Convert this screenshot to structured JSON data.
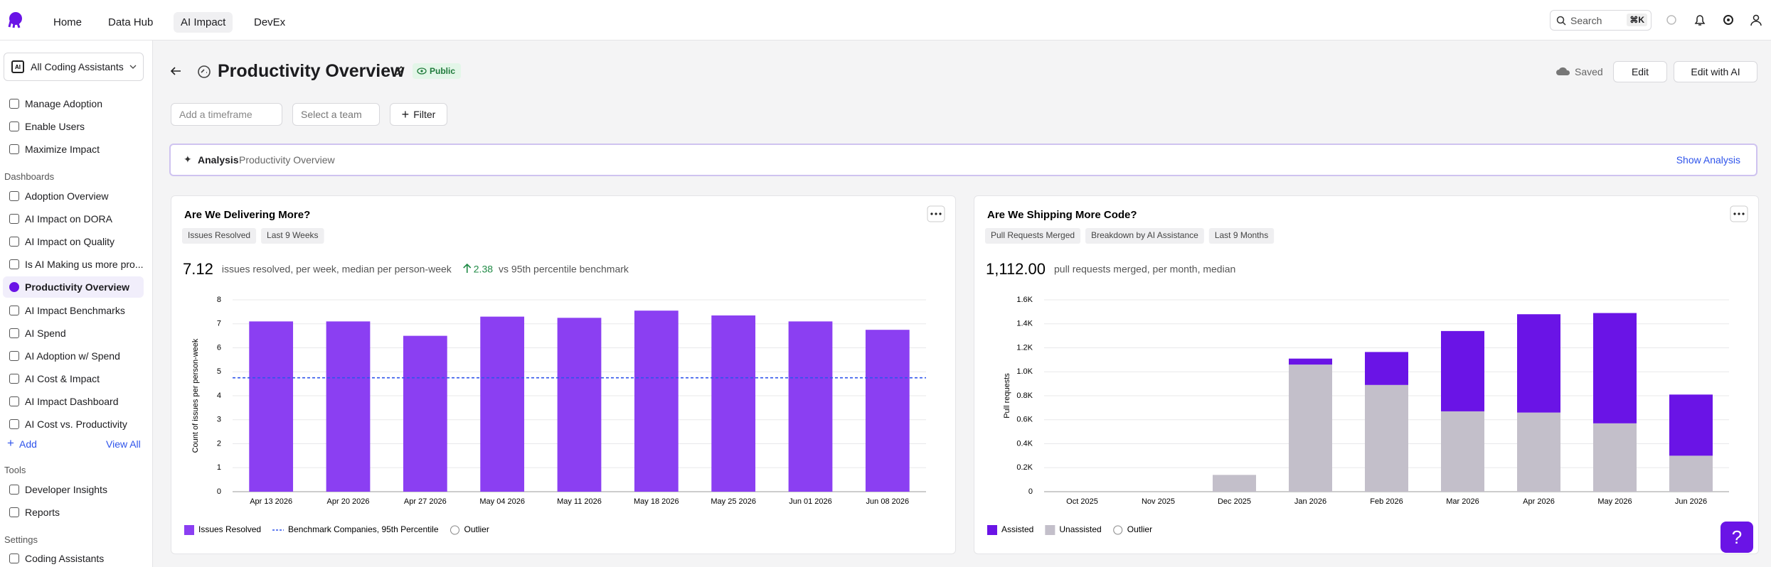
{
  "nav": {
    "items": [
      "Home",
      "Data Hub",
      "AI Impact",
      "DevEx"
    ],
    "search": "Search",
    "shortcut": "⌘K"
  },
  "sidebar": {
    "selector": "All Coding Assistants",
    "top_items": [
      "Manage Adoption",
      "Enable Users",
      "Maximize Impact"
    ],
    "dashboards_heading": "Dashboards",
    "dashboards": [
      "Adoption Overview",
      "AI Impact on DORA",
      "AI Impact on Quality",
      "Is AI Making us more pro...",
      "Productivity Overview",
      "AI Impact Benchmarks",
      "AI Spend",
      "AI Adoption w/ Spend",
      "AI Cost & Impact",
      "AI Impact Dashboard",
      "AI Cost vs. Productivity"
    ],
    "add": "Add",
    "view_all": "View All",
    "tools_heading": "Tools",
    "tools": [
      "Developer Insights",
      "Reports"
    ],
    "settings_heading": "Settings",
    "settings": [
      "Coding Assistants"
    ]
  },
  "header": {
    "title": "Productivity Overview",
    "badge": "Public",
    "saved": "Saved",
    "edit": "Edit",
    "edit_ai": "Edit with AI"
  },
  "filters": {
    "timeframe": "Add a timeframe",
    "team": "Select a team",
    "filter": "Filter"
  },
  "analysis": {
    "label": "Analysis",
    "name": "Productivity Overview",
    "action": "Show Analysis"
  },
  "help": "?",
  "chart_data": [
    {
      "type": "bar",
      "title": "Are We Delivering More?",
      "tags": [
        "Issues Resolved",
        "Last 9 Weeks"
      ],
      "stat": "7.12",
      "stat_text": "issues resolved, per week, median per person-week",
      "delta": "2.38",
      "delta_text": "vs 95th percentile benchmark",
      "y_label": "Count of issues per person-week",
      "categories": [
        "Apr 13 2026",
        "Apr 20 2026",
        "Apr 27 2026",
        "May 04 2026",
        "May 11 2026",
        "May 18 2026",
        "May 25 2026",
        "Jun 01 2026",
        "Jun 08 2026"
      ],
      "series": [
        {
          "name": "Issues Resolved",
          "color": "#8b3ff2",
          "values": [
            7.1,
            7.1,
            6.5,
            7.3,
            7.25,
            7.55,
            7.35,
            7.1,
            6.75
          ]
        }
      ],
      "benchmark": {
        "name": "Benchmark Companies, 95th Percentile",
        "value": 4.75,
        "color": "#2f54eb"
      },
      "outlier_label": "Outlier",
      "ylim": [
        0,
        8
      ],
      "yticks": [
        0,
        1,
        2,
        3,
        4,
        5,
        6,
        7,
        8
      ],
      "grid": true
    },
    {
      "type": "bar",
      "stacked": true,
      "title": "Are We Shipping More Code?",
      "tags": [
        "Pull Requests Merged",
        "Breakdown by AI Assistance",
        "Last 9 Months"
      ],
      "stat": "1,112.00",
      "stat_text": "pull requests merged, per month, median",
      "y_label": "Pull requests",
      "categories": [
        "Oct 2025",
        "Nov 2025",
        "Dec 2025",
        "Jan 2026",
        "Feb 2026",
        "Mar 2026",
        "Apr 2026",
        "May 2026",
        "Jun 2026"
      ],
      "series": [
        {
          "name": "Assisted",
          "color": "#6a14e6",
          "values": [
            0,
            0,
            0,
            50,
            275,
            670,
            820,
            920,
            510
          ]
        },
        {
          "name": "Unassisted",
          "color": "#c3bfca",
          "values": [
            0,
            0,
            140,
            1060,
            890,
            670,
            660,
            570,
            300
          ]
        }
      ],
      "outlier_label": "Outlier",
      "ylim": [
        0,
        1600
      ],
      "yticks": [
        0,
        {
          "value": 200,
          "label": "0.2K"
        },
        {
          "value": 400,
          "label": "0.4K"
        },
        {
          "value": 600,
          "label": "0.6K"
        },
        {
          "value": 800,
          "label": "0.8K"
        },
        {
          "value": 1000,
          "label": "1.0K"
        },
        {
          "value": 1200,
          "label": "1.2K"
        },
        {
          "value": 1400,
          "label": "1.4K"
        },
        {
          "value": 1600,
          "label": "1.6K"
        }
      ],
      "grid": true
    }
  ]
}
